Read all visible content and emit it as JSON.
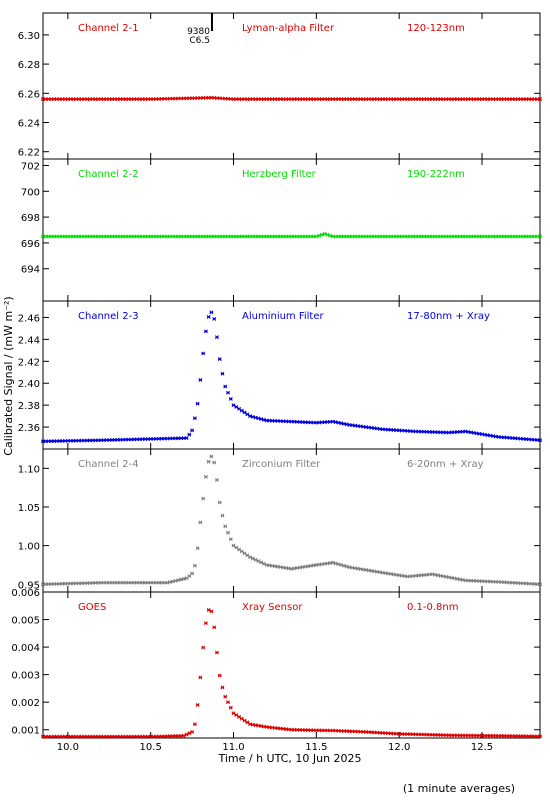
{
  "chart_data": {
    "type": "scatter",
    "xlabel": "Time / h UTC, 10 Jun 2025",
    "ylabel": "Calibrated Signal / (mW m⁻²)",
    "footnote": "(1 minute averages)",
    "xlim": [
      9.85,
      12.85
    ],
    "xticks": [
      "10.0",
      "10.5",
      "11.0",
      "11.5",
      "12.0",
      "12.5"
    ],
    "panels": [
      {
        "channel": "Channel 2-1",
        "filter": "Lyman-alpha Filter",
        "band": "120-123nm",
        "color": "#e00000",
        "ylim": [
          6.215,
          6.315
        ],
        "yticks": [
          "6.22",
          "6.24",
          "6.26",
          "6.28",
          "6.30"
        ],
        "flare_marker": {
          "x": 10.87,
          "labels": [
            "9380",
            "C6.5"
          ]
        },
        "series": {
          "x": [
            9.85,
            10.0,
            10.5,
            10.87,
            11.0,
            11.5,
            12.0,
            12.5,
            12.85
          ],
          "y": [
            6.256,
            6.256,
            6.256,
            6.257,
            6.256,
            6.256,
            6.256,
            6.256,
            6.256
          ]
        }
      },
      {
        "channel": "Channel 2-2",
        "filter": "Herzberg Filter",
        "band": "190-222nm",
        "color": "#00e000",
        "ylim": [
          691.5,
          702.5
        ],
        "yticks": [
          "694",
          "696",
          "698",
          "700",
          "702"
        ],
        "series": {
          "x": [
            9.85,
            10.5,
            11.0,
            11.5,
            11.55,
            11.6,
            12.0,
            12.85
          ],
          "y": [
            696.5,
            696.5,
            696.5,
            696.5,
            696.7,
            696.5,
            696.5,
            696.5
          ]
        }
      },
      {
        "channel": "Channel 2-3",
        "filter": "Aluminium Filter",
        "band": "17-80nm + Xray",
        "color": "#0000e0",
        "ylim": [
          2.34,
          2.475
        ],
        "yticks": [
          "2.36",
          "2.38",
          "2.40",
          "2.42",
          "2.44",
          "2.46"
        ],
        "series": {
          "x": [
            9.85,
            10.2,
            10.72,
            10.75,
            10.78,
            10.8,
            10.82,
            10.84,
            10.86,
            10.88,
            10.9,
            10.92,
            10.95,
            11.0,
            11.1,
            11.2,
            11.35,
            11.5,
            11.6,
            11.7,
            11.9,
            12.1,
            12.3,
            12.4,
            12.6,
            12.85
          ],
          "y": [
            2.347,
            2.348,
            2.35,
            2.357,
            2.377,
            2.403,
            2.432,
            2.455,
            2.466,
            2.462,
            2.442,
            2.418,
            2.397,
            2.38,
            2.37,
            2.366,
            2.365,
            2.364,
            2.365,
            2.362,
            2.358,
            2.356,
            2.355,
            2.356,
            2.351,
            2.348
          ]
        }
      },
      {
        "channel": "Channel 2-4",
        "filter": "Zirconium Filter",
        "band": "6-20nm + Xray",
        "color": "#808080",
        "ylim": [
          0.94,
          1.125
        ],
        "yticks": [
          "0.95",
          "1.00",
          "1.05",
          "1.10"
        ],
        "series": {
          "x": [
            9.85,
            10.2,
            10.6,
            10.72,
            10.76,
            10.78,
            10.8,
            10.82,
            10.84,
            10.86,
            10.88,
            10.9,
            10.92,
            10.95,
            11.0,
            11.1,
            11.2,
            11.35,
            11.5,
            11.6,
            11.7,
            11.9,
            12.05,
            12.2,
            12.4,
            12.6,
            12.85
          ],
          "y": [
            0.95,
            0.952,
            0.952,
            0.958,
            0.966,
            0.99,
            1.03,
            1.067,
            1.1,
            1.117,
            1.112,
            1.085,
            1.05,
            1.025,
            1.0,
            0.985,
            0.975,
            0.97,
            0.975,
            0.978,
            0.972,
            0.965,
            0.96,
            0.963,
            0.955,
            0.953,
            0.95
          ]
        }
      },
      {
        "channel": "GOES",
        "filter": "Xray Sensor",
        "band": "0.1-0.8nm",
        "color": "#e00000",
        "ylim": [
          0.0007,
          0.006
        ],
        "yticks": [
          "0.001",
          "0.002",
          "0.003",
          "0.004",
          "0.005",
          "0.006"
        ],
        "series": {
          "x": [
            9.85,
            10.5,
            10.7,
            10.76,
            10.78,
            10.8,
            10.82,
            10.84,
            10.86,
            10.88,
            10.9,
            10.92,
            10.95,
            11.0,
            11.1,
            11.2,
            11.35,
            11.5,
            11.6,
            11.8,
            12.0,
            12.3,
            12.6,
            12.85
          ],
          "y": [
            0.00075,
            0.00075,
            0.00078,
            0.00095,
            0.0017,
            0.0029,
            0.0042,
            0.0052,
            0.0055,
            0.0049,
            0.0038,
            0.0028,
            0.0022,
            0.0016,
            0.0012,
            0.0011,
            0.001,
            0.00098,
            0.00097,
            0.00092,
            0.00085,
            0.0008,
            0.00078,
            0.00076
          ]
        }
      }
    ]
  }
}
